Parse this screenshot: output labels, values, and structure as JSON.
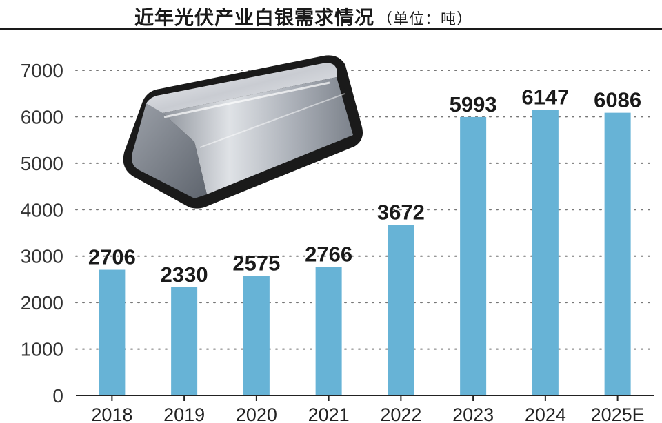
{
  "title": "近年光伏产业白银需求情况",
  "subtitle": "（单位：吨）",
  "chart_data": {
    "type": "bar",
    "categories": [
      "2018",
      "2019",
      "2020",
      "2021",
      "2022",
      "2023",
      "2024",
      "2025E"
    ],
    "values": [
      2706,
      2330,
      2575,
      2766,
      3672,
      5993,
      6147,
      6086
    ],
    "data_labels": [
      "2706",
      "2330",
      "2575",
      "2766",
      "3672",
      "5993",
      "6147",
      "6086"
    ],
    "yticks": [
      0,
      1000,
      2000,
      3000,
      4000,
      5000,
      6000,
      7000
    ],
    "ylim": [
      0,
      7000
    ],
    "grid": "dotted-horizontal",
    "colors": {
      "bar": "#67b3d6",
      "grid": "#777777",
      "axis": "#222222",
      "text": "#1a1a1a"
    }
  },
  "decoration": {
    "illustration": "silver-ingot-icon"
  }
}
